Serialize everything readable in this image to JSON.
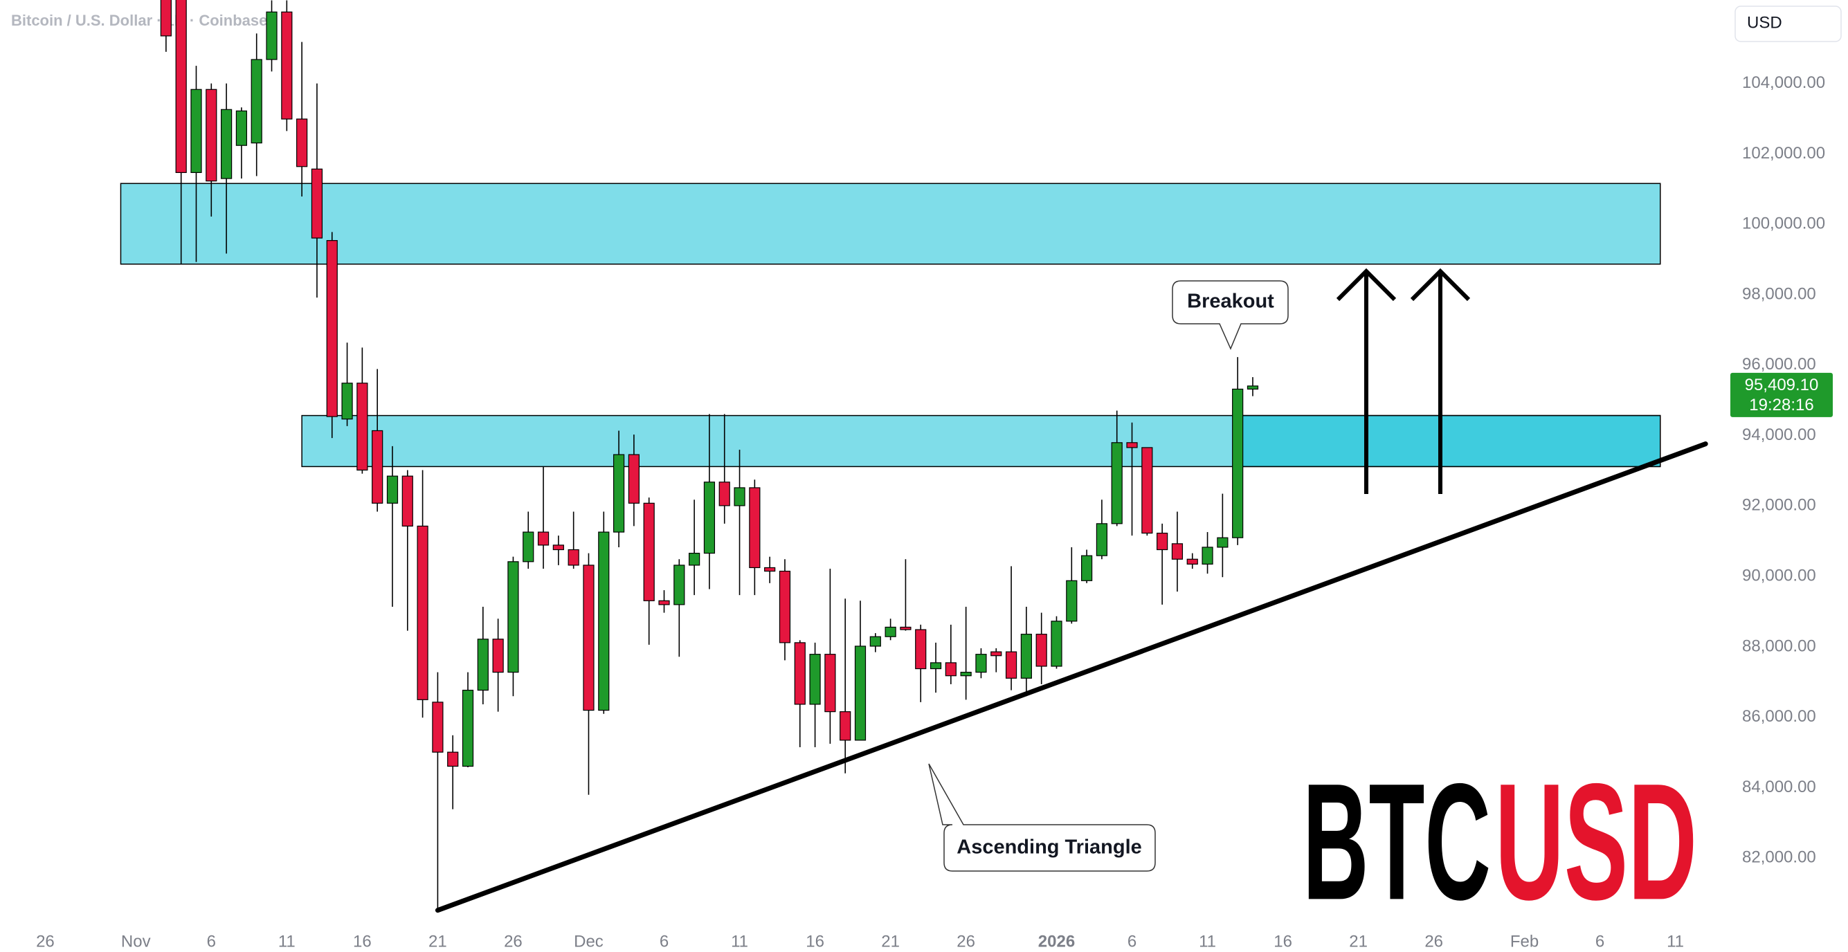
{
  "chart_data": {
    "type": "candlestick",
    "title": "Bitcoin / U.S. Dollar · 1D · Coinbase",
    "currency": "USD",
    "watermark": [
      "BTC",
      "USD"
    ],
    "watermark_colors": [
      "#000000",
      "#e4142c"
    ],
    "up_color": "#1f9a2b",
    "down_color": "#e5163f",
    "grid": false,
    "xlim": [
      "Oct 23",
      "Feb 14"
    ],
    "ylim": [
      80180,
      106370
    ],
    "yticks": [
      {
        "value": 82000,
        "label": "82,000.00"
      },
      {
        "value": 84000,
        "label": "84,000.00"
      },
      {
        "value": 86000,
        "label": "86,000.00"
      },
      {
        "value": 88000,
        "label": "88,000.00"
      },
      {
        "value": 90000,
        "label": "90,000.00"
      },
      {
        "value": 92000,
        "label": "92,000.00"
      },
      {
        "value": 94000,
        "label": "94,000.00"
      },
      {
        "value": 96000,
        "label": "96,000.00"
      },
      {
        "value": 98000,
        "label": "98,000.00"
      },
      {
        "value": 100000,
        "label": "100,000.00"
      },
      {
        "value": 102000,
        "label": "102,000.00"
      },
      {
        "value": 104000,
        "label": "104,000.00"
      }
    ],
    "xticks": [
      {
        "value": "Oct 26",
        "label": "26"
      },
      {
        "value": "Nov 1",
        "label": "Nov"
      },
      {
        "value": "Nov 6",
        "label": "6"
      },
      {
        "value": "Nov 11",
        "label": "11"
      },
      {
        "value": "Nov 16",
        "label": "16"
      },
      {
        "value": "Nov 21",
        "label": "21"
      },
      {
        "value": "Nov 26",
        "label": "26"
      },
      {
        "value": "Dec 1",
        "label": "Dec"
      },
      {
        "value": "Dec 6",
        "label": "6"
      },
      {
        "value": "Dec 11",
        "label": "11"
      },
      {
        "value": "Dec 16",
        "label": "16"
      },
      {
        "value": "Dec 21",
        "label": "21"
      },
      {
        "value": "Dec 26",
        "label": "26"
      },
      {
        "value": "Jan 1",
        "label": "2026"
      },
      {
        "value": "Jan 6",
        "label": "6"
      },
      {
        "value": "Jan 11",
        "label": "11"
      },
      {
        "value": "Jan 16",
        "label": "16"
      },
      {
        "value": "Jan 21",
        "label": "21"
      },
      {
        "value": "Jan 26",
        "label": "26"
      },
      {
        "value": "Feb 1",
        "label": "Feb"
      },
      {
        "value": "Feb 6",
        "label": "6"
      },
      {
        "value": "Feb 11",
        "label": "11"
      }
    ],
    "x": [
      "Nov 3",
      "Nov 4",
      "Nov 5",
      "Nov 6",
      "Nov 7",
      "Nov 8",
      "Nov 9",
      "Nov 10",
      "Nov 11",
      "Nov 12",
      "Nov 13",
      "Nov 14",
      "Nov 15",
      "Nov 16",
      "Nov 17",
      "Nov 18",
      "Nov 19",
      "Nov 20",
      "Nov 21",
      "Nov 22",
      "Nov 23",
      "Nov 24",
      "Nov 25",
      "Nov 26",
      "Nov 27",
      "Nov 28",
      "Nov 29",
      "Nov 30",
      "Dec 1",
      "Dec 2",
      "Dec 3",
      "Dec 4",
      "Dec 5",
      "Dec 6",
      "Dec 7",
      "Dec 8",
      "Dec 9",
      "Dec 10",
      "Dec 11",
      "Dec 12",
      "Dec 13",
      "Dec 14",
      "Dec 15",
      "Dec 16",
      "Dec 17",
      "Dec 18",
      "Dec 19",
      "Dec 20",
      "Dec 21",
      "Dec 22",
      "Dec 23",
      "Dec 24",
      "Dec 25",
      "Dec 26",
      "Dec 27",
      "Dec 28",
      "Dec 29",
      "Dec 30",
      "Dec 31",
      "Jan 1",
      "Jan 2",
      "Jan 3",
      "Jan 4",
      "Jan 5",
      "Jan 6",
      "Jan 7",
      "Jan 8",
      "Jan 9",
      "Jan 10",
      "Jan 11",
      "Jan 12",
      "Jan 13",
      "Jan 14"
    ],
    "open": [
      107300,
      106800,
      101470,
      103830,
      101300,
      102240,
      102310,
      104680,
      106030,
      102990,
      101570,
      99540,
      94470,
      95490,
      94140,
      92080,
      92850,
      91430,
      86430,
      85010,
      84610,
      86770,
      88220,
      87280,
      90420,
      91260,
      90890,
      90760,
      90320,
      86200,
      91260,
      93460,
      92080,
      89310,
      89200,
      90320,
      90660,
      92680,
      92010,
      92520,
      90250,
      90150,
      88120,
      86370,
      87790,
      86160,
      85350,
      88020,
      88290,
      88560,
      88490,
      87380,
      87550,
      87180,
      87280,
      87860,
      87860,
      87110,
      88360,
      87450,
      88730,
      89880,
      90590,
      91500,
      93800,
      93660,
      91230,
      90930,
      90490,
      90350,
      90830,
      91100,
      95320
    ],
    "high": [
      107900,
      107200,
      104500,
      104000,
      104000,
      103320,
      105420,
      106360,
      106360,
      105180,
      104000,
      99780,
      96640,
      96500,
      95890,
      93700,
      93020,
      93020,
      87280,
      85490,
      87280,
      89140,
      88800,
      90560,
      91840,
      93120,
      91160,
      91840,
      90660,
      91840,
      94140,
      94030,
      92240,
      89610,
      90490,
      92180,
      94610,
      94610,
      93600,
      92750,
      90560,
      90490,
      88190,
      88120,
      90220,
      89370,
      89310,
      88390,
      88800,
      90490,
      88630,
      88120,
      88630,
      89140,
      87960,
      87960,
      90290,
      89140,
      88970,
      88870,
      90830,
      90760,
      92180,
      94710,
      94370,
      93660,
      91500,
      91840,
      90660,
      91260,
      92350,
      96230,
      95660
    ],
    "low": [
      104900,
      98870,
      98930,
      100220,
      99170,
      101300,
      101370,
      104340,
      102650,
      100790,
      97920,
      93930,
      94270,
      92920,
      91840,
      89140,
      88460,
      85990,
      80520,
      83390,
      84580,
      86370,
      86160,
      86600,
      90220,
      90220,
      90320,
      90220,
      83800,
      86100,
      90830,
      91430,
      88060,
      88970,
      87720,
      89470,
      89640,
      91500,
      89470,
      89470,
      89810,
      87620,
      85150,
      85150,
      85250,
      84410,
      85350,
      87850,
      88190,
      88460,
      86430,
      86700,
      86940,
      86500,
      87110,
      87280,
      86770,
      86600,
      86940,
      87380,
      88660,
      89810,
      90490,
      91430,
      91160,
      91160,
      89200,
      89570,
      90220,
      90080,
      89980,
      90890,
      95120
    ],
    "close": [
      105350,
      101470,
      103830,
      101230,
      103260,
      103220,
      104680,
      106030,
      102990,
      101640,
      99610,
      94540,
      95490,
      93020,
      92080,
      92850,
      91430,
      86500,
      85010,
      84610,
      86770,
      88220,
      87280,
      90420,
      91260,
      90890,
      90760,
      90320,
      86200,
      91260,
      93460,
      92080,
      89310,
      89200,
      90320,
      90660,
      92680,
      92010,
      92520,
      90250,
      90150,
      88120,
      86370,
      87790,
      86160,
      85350,
      88020,
      88290,
      88560,
      88490,
      87380,
      87550,
      87180,
      87280,
      87790,
      87750,
      87110,
      88360,
      87450,
      88730,
      89880,
      90590,
      91500,
      93800,
      93660,
      91230,
      90760,
      90490,
      90350,
      90830,
      91100,
      95320,
      95409.1
    ],
    "last_price": {
      "value": 95409.1,
      "label": "95,409.10"
    },
    "countdown": "19:28:16",
    "zones": [
      {
        "xlim": [
          "Oct 31",
          "Feb 10"
        ],
        "ylim": [
          98870,
          101160
        ]
      },
      {
        "xlim": [
          "Nov 12",
          "Feb 10"
        ],
        "ylim": [
          93120,
          94570
        ]
      },
      {
        "xlim": [
          "Jan 13",
          "Feb 10"
        ],
        "ylim": [
          93120,
          94570
        ]
      }
    ],
    "zone_color": "rgba(0, 188, 212, 0.5)",
    "trendline": {
      "x": [
        "Nov 21",
        "Feb 13"
      ],
      "y": [
        80520,
        93765
      ]
    },
    "annotations": [
      {
        "text": "Breakout"
      },
      {
        "text": "Ascending Triangle"
      }
    ]
  }
}
